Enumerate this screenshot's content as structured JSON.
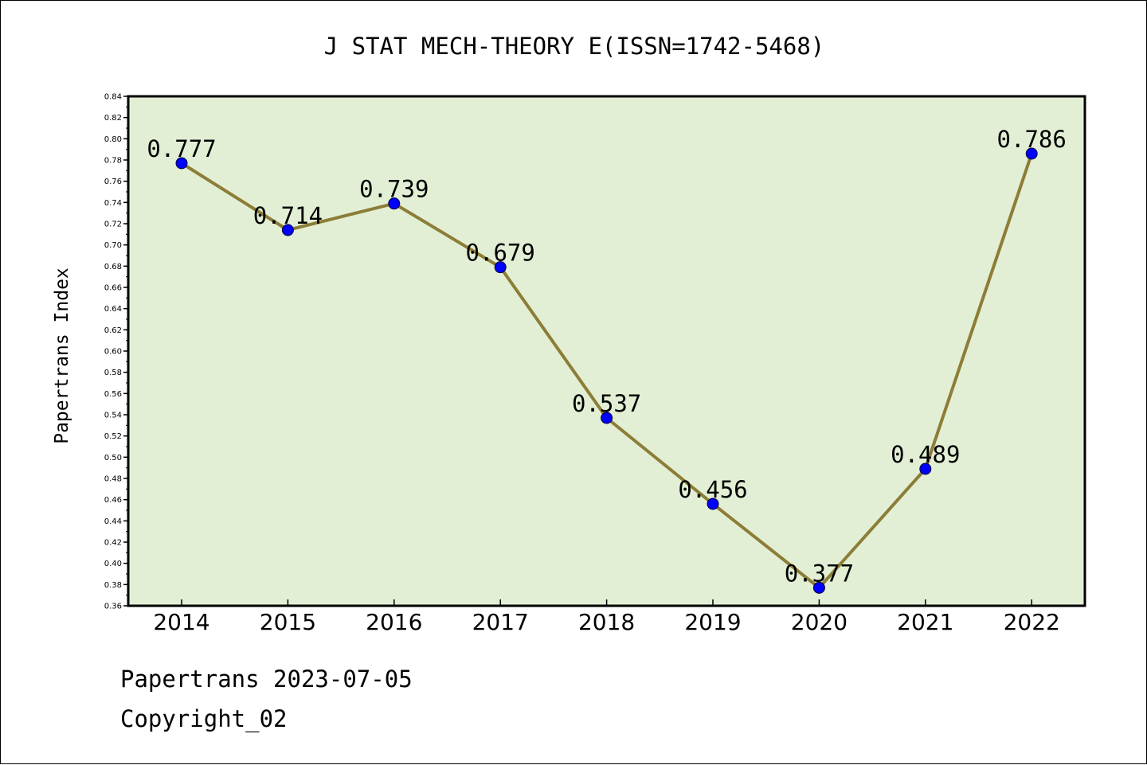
{
  "chart_data": {
    "type": "line",
    "title": "J STAT MECH-THEORY E(ISSN=1742-5468)",
    "ylabel": "Papertrans Index",
    "xlabel": "",
    "categories": [
      "2014",
      "2015",
      "2016",
      "2017",
      "2018",
      "2019",
      "2020",
      "2021",
      "2022"
    ],
    "series": [
      {
        "values": [
          0.777,
          0.714,
          0.739,
          0.679,
          0.537,
          0.456,
          0.377,
          0.489,
          0.786
        ]
      }
    ],
    "data_labels": [
      "0.777",
      "0.714",
      "0.739",
      "0.679",
      "0.537",
      "0.456",
      "0.377",
      "0.489",
      "0.786"
    ],
    "ylim": [
      0.36,
      0.84
    ],
    "yticks": [
      "0.36",
      "0.38",
      "0.40",
      "0.42",
      "0.44",
      "0.46",
      "0.48",
      "0.50",
      "0.52",
      "0.54",
      "0.56",
      "0.58",
      "0.60",
      "0.62",
      "0.64",
      "0.66",
      "0.68",
      "0.70",
      "0.72",
      "0.74",
      "0.76",
      "0.78",
      "0.80",
      "0.82",
      "0.84"
    ],
    "grid": false,
    "legend": "none",
    "colors": {
      "plot_background": "#e2efd5",
      "line": "#8c7d37",
      "marker": "#0000ff",
      "axes": "#000000"
    }
  },
  "footer": {
    "date_line": "Papertrans 2023-07-05",
    "copyright": "Copyright_02"
  }
}
